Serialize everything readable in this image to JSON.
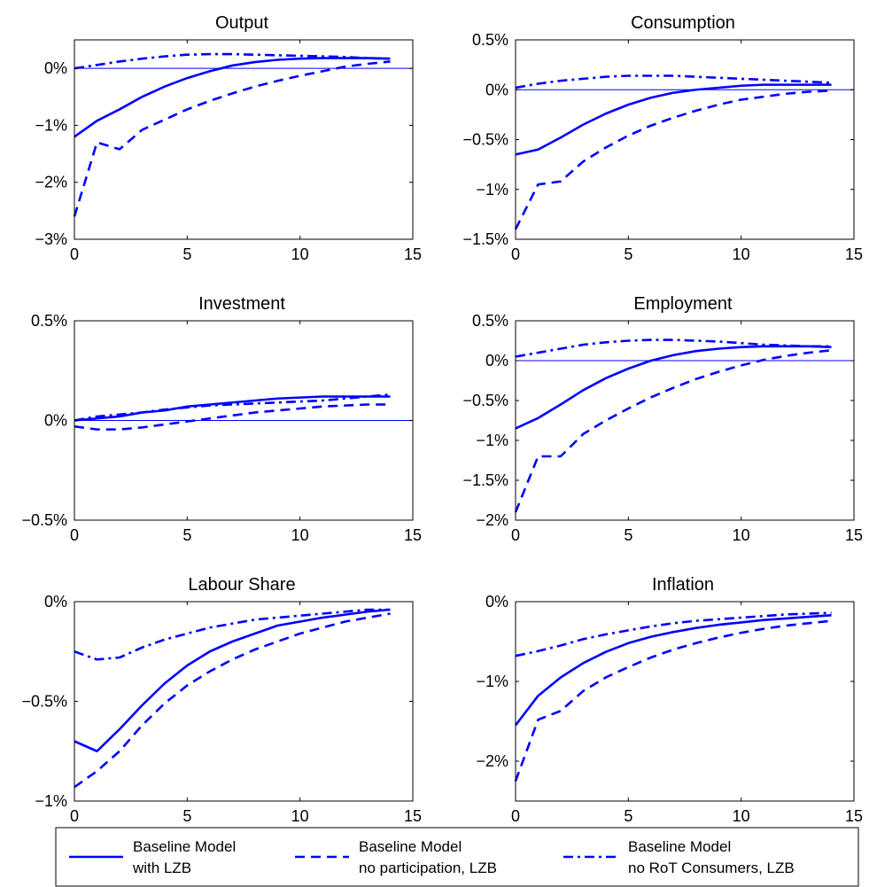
{
  "colors": {
    "series": "#0000FF",
    "axis": "#000000",
    "background": "#FFFFFF"
  },
  "legend": {
    "position": "bottom",
    "entries": [
      {
        "style": "solid",
        "line1": "Baseline Model",
        "line2": "with LZB"
      },
      {
        "style": "dashed",
        "line1": "Baseline Model",
        "line2": "no participation, LZB"
      },
      {
        "style": "dashdot",
        "line1": "Baseline Model",
        "line2": "no RoT Consumers, LZB"
      }
    ]
  },
  "chart_data": [
    {
      "type": "line",
      "title": "Output",
      "xlim": [
        0,
        15
      ],
      "ylim": [
        -3,
        0.5
      ],
      "xticks": [
        0,
        5,
        10,
        15
      ],
      "xtick_labels": [
        "0",
        "5",
        "10",
        "15"
      ],
      "yticks": [
        -3,
        -2,
        -1,
        0
      ],
      "ytick_labels": [
        "−3%",
        "−2%",
        "−1%",
        "0%"
      ],
      "zero_line": true,
      "x": [
        0,
        1,
        2,
        3,
        4,
        5,
        6,
        7,
        8,
        9,
        10,
        11,
        12,
        13,
        14
      ],
      "series": [
        {
          "style": "solid",
          "values": [
            -1.2,
            -0.92,
            -0.72,
            -0.5,
            -0.32,
            -0.17,
            -0.05,
            0.05,
            0.11,
            0.15,
            0.17,
            0.18,
            0.18,
            0.18,
            0.17
          ]
        },
        {
          "style": "dashed",
          "values": [
            -2.6,
            -1.3,
            -1.42,
            -1.08,
            -0.9,
            -0.72,
            -0.57,
            -0.44,
            -0.32,
            -0.22,
            -0.13,
            -0.05,
            0.03,
            0.08,
            0.12
          ]
        },
        {
          "style": "dashdot",
          "values": [
            0.0,
            0.06,
            0.12,
            0.17,
            0.21,
            0.24,
            0.25,
            0.25,
            0.24,
            0.23,
            0.22,
            0.21,
            0.2,
            0.18,
            0.17
          ]
        }
      ]
    },
    {
      "type": "line",
      "title": "Consumption",
      "xlim": [
        0,
        15
      ],
      "ylim": [
        -1.5,
        0.5
      ],
      "xticks": [
        0,
        5,
        10,
        15
      ],
      "xtick_labels": [
        "0",
        "5",
        "10",
        "15"
      ],
      "yticks": [
        -1.5,
        -1,
        -0.5,
        0,
        0.5
      ],
      "ytick_labels": [
        "−1.5%",
        "−1%",
        "−0.5%",
        "0%",
        "0.5%"
      ],
      "zero_line": true,
      "x": [
        0,
        1,
        2,
        3,
        4,
        5,
        6,
        7,
        8,
        9,
        10,
        11,
        12,
        13,
        14
      ],
      "series": [
        {
          "style": "solid",
          "values": [
            -0.65,
            -0.6,
            -0.48,
            -0.35,
            -0.24,
            -0.15,
            -0.08,
            -0.03,
            0.0,
            0.02,
            0.04,
            0.05,
            0.05,
            0.05,
            0.05
          ]
        },
        {
          "style": "dashed",
          "values": [
            -1.4,
            -0.95,
            -0.92,
            -0.72,
            -0.58,
            -0.46,
            -0.36,
            -0.28,
            -0.21,
            -0.15,
            -0.1,
            -0.07,
            -0.04,
            -0.02,
            -0.01
          ]
        },
        {
          "style": "dashdot",
          "values": [
            0.02,
            0.06,
            0.09,
            0.11,
            0.13,
            0.14,
            0.14,
            0.14,
            0.13,
            0.12,
            0.11,
            0.1,
            0.09,
            0.08,
            0.07
          ]
        }
      ]
    },
    {
      "type": "line",
      "title": "Investment",
      "xlim": [
        0,
        15
      ],
      "ylim": [
        -0.5,
        0.5
      ],
      "xticks": [
        0,
        5,
        10,
        15
      ],
      "xtick_labels": [
        "0",
        "5",
        "10",
        "15"
      ],
      "yticks": [
        -0.5,
        0,
        0.5
      ],
      "ytick_labels": [
        "−0.5%",
        "0%",
        "0.5%"
      ],
      "zero_line": true,
      "x": [
        0,
        1,
        2,
        3,
        4,
        5,
        6,
        7,
        8,
        9,
        10,
        11,
        12,
        13,
        14
      ],
      "series": [
        {
          "style": "solid",
          "values": [
            0.0,
            0.01,
            0.02,
            0.04,
            0.05,
            0.07,
            0.08,
            0.09,
            0.1,
            0.11,
            0.115,
            0.12,
            0.12,
            0.12,
            0.12
          ]
        },
        {
          "style": "dashed",
          "values": [
            -0.03,
            -0.045,
            -0.045,
            -0.035,
            -0.02,
            -0.005,
            0.01,
            0.025,
            0.04,
            0.05,
            0.06,
            0.07,
            0.075,
            0.08,
            0.08
          ]
        },
        {
          "style": "dashdot",
          "values": [
            0.0,
            0.02,
            0.03,
            0.04,
            0.055,
            0.065,
            0.075,
            0.08,
            0.085,
            0.09,
            0.095,
            0.1,
            0.11,
            0.12,
            0.13
          ]
        }
      ]
    },
    {
      "type": "line",
      "title": "Employment",
      "xlim": [
        0,
        15
      ],
      "ylim": [
        -2,
        0.5
      ],
      "xticks": [
        0,
        5,
        10,
        15
      ],
      "xtick_labels": [
        "0",
        "5",
        "10",
        "15"
      ],
      "yticks": [
        -2,
        -1.5,
        -1,
        -0.5,
        0,
        0.5
      ],
      "ytick_labels": [
        "−2%",
        "−1.5%",
        "−1%",
        "−0.5%",
        "0%",
        "0.5%"
      ],
      "zero_line": true,
      "x": [
        0,
        1,
        2,
        3,
        4,
        5,
        6,
        7,
        8,
        9,
        10,
        11,
        12,
        13,
        14
      ],
      "series": [
        {
          "style": "solid",
          "values": [
            -0.85,
            -0.72,
            -0.55,
            -0.37,
            -0.22,
            -0.1,
            0.0,
            0.07,
            0.12,
            0.15,
            0.17,
            0.18,
            0.18,
            0.18,
            0.17
          ]
        },
        {
          "style": "dashed",
          "values": [
            -1.9,
            -1.2,
            -1.2,
            -0.92,
            -0.75,
            -0.6,
            -0.46,
            -0.34,
            -0.23,
            -0.14,
            -0.06,
            0.01,
            0.06,
            0.1,
            0.13
          ]
        },
        {
          "style": "dashdot",
          "values": [
            0.05,
            0.1,
            0.15,
            0.2,
            0.23,
            0.25,
            0.26,
            0.26,
            0.25,
            0.24,
            0.22,
            0.2,
            0.19,
            0.18,
            0.18
          ]
        }
      ]
    },
    {
      "type": "line",
      "title": "Labour Share",
      "xlim": [
        0,
        15
      ],
      "ylim": [
        -1,
        0
      ],
      "xticks": [
        0,
        5,
        10,
        15
      ],
      "xtick_labels": [
        "0",
        "5",
        "10",
        "15"
      ],
      "yticks": [
        -1,
        -0.5,
        0
      ],
      "ytick_labels": [
        "−1%",
        "−0.5%",
        "0%"
      ],
      "zero_line": true,
      "x": [
        0,
        1,
        2,
        3,
        4,
        5,
        6,
        7,
        8,
        9,
        10,
        11,
        12,
        13,
        14
      ],
      "series": [
        {
          "style": "solid",
          "values": [
            -0.7,
            -0.75,
            -0.64,
            -0.52,
            -0.41,
            -0.32,
            -0.25,
            -0.2,
            -0.16,
            -0.12,
            -0.1,
            -0.08,
            -0.065,
            -0.05,
            -0.04
          ]
        },
        {
          "style": "dashed",
          "values": [
            -0.93,
            -0.85,
            -0.75,
            -0.62,
            -0.51,
            -0.42,
            -0.35,
            -0.29,
            -0.24,
            -0.2,
            -0.16,
            -0.13,
            -0.1,
            -0.08,
            -0.06
          ]
        },
        {
          "style": "dashdot",
          "values": [
            -0.25,
            -0.29,
            -0.28,
            -0.23,
            -0.19,
            -0.16,
            -0.13,
            -0.11,
            -0.09,
            -0.08,
            -0.07,
            -0.06,
            -0.05,
            -0.04,
            -0.04
          ]
        }
      ]
    },
    {
      "type": "line",
      "title": "Inflation",
      "xlim": [
        0,
        15
      ],
      "ylim": [
        -2.5,
        0
      ],
      "xticks": [
        0,
        5,
        10,
        15
      ],
      "xtick_labels": [
        "0",
        "5",
        "10",
        "15"
      ],
      "yticks": [
        -2,
        -1,
        0
      ],
      "ytick_labels": [
        "−2%",
        "−1%",
        "0%"
      ],
      "zero_line": true,
      "x": [
        0,
        1,
        2,
        3,
        4,
        5,
        6,
        7,
        8,
        9,
        10,
        11,
        12,
        13,
        14
      ],
      "series": [
        {
          "style": "solid",
          "values": [
            -1.55,
            -1.18,
            -0.95,
            -0.77,
            -0.63,
            -0.52,
            -0.44,
            -0.38,
            -0.33,
            -0.29,
            -0.26,
            -0.23,
            -0.21,
            -0.19,
            -0.17
          ]
        },
        {
          "style": "dashed",
          "values": [
            -2.25,
            -1.48,
            -1.37,
            -1.12,
            -0.95,
            -0.82,
            -0.7,
            -0.6,
            -0.52,
            -0.45,
            -0.39,
            -0.34,
            -0.3,
            -0.27,
            -0.24
          ]
        },
        {
          "style": "dashdot",
          "values": [
            -0.68,
            -0.62,
            -0.55,
            -0.47,
            -0.41,
            -0.36,
            -0.31,
            -0.27,
            -0.24,
            -0.22,
            -0.2,
            -0.18,
            -0.16,
            -0.15,
            -0.14
          ]
        }
      ]
    }
  ]
}
